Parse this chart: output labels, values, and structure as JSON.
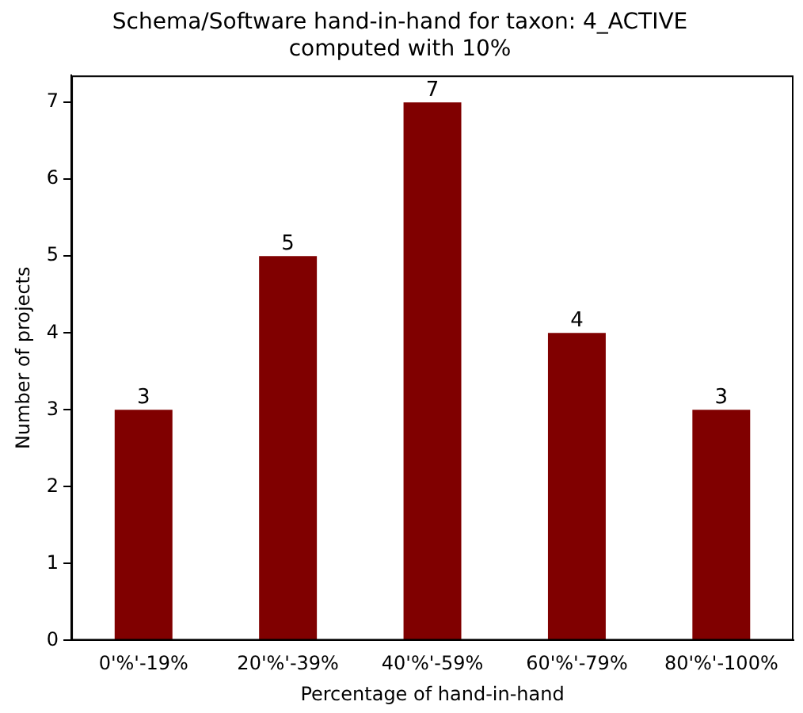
{
  "chart_data": {
    "type": "bar",
    "title": "Schema/Software hand-in-hand for taxon: 4_ACTIVE",
    "subtitle": "computed with 10%",
    "xlabel": "Percentage of hand-in-hand",
    "ylabel": "Number of projects",
    "categories": [
      "0'%'-19%",
      "20'%'-39%",
      "40'%'-59%",
      "60'%'-79%",
      "80'%'-100%"
    ],
    "values": [
      3,
      5,
      7,
      4,
      3
    ],
    "color": "#800000",
    "ylim": [
      0,
      7.35
    ],
    "yticks": [
      0,
      1,
      2,
      3,
      4,
      5,
      6,
      7
    ],
    "grid": false,
    "data_labels": true,
    "legend": false
  }
}
